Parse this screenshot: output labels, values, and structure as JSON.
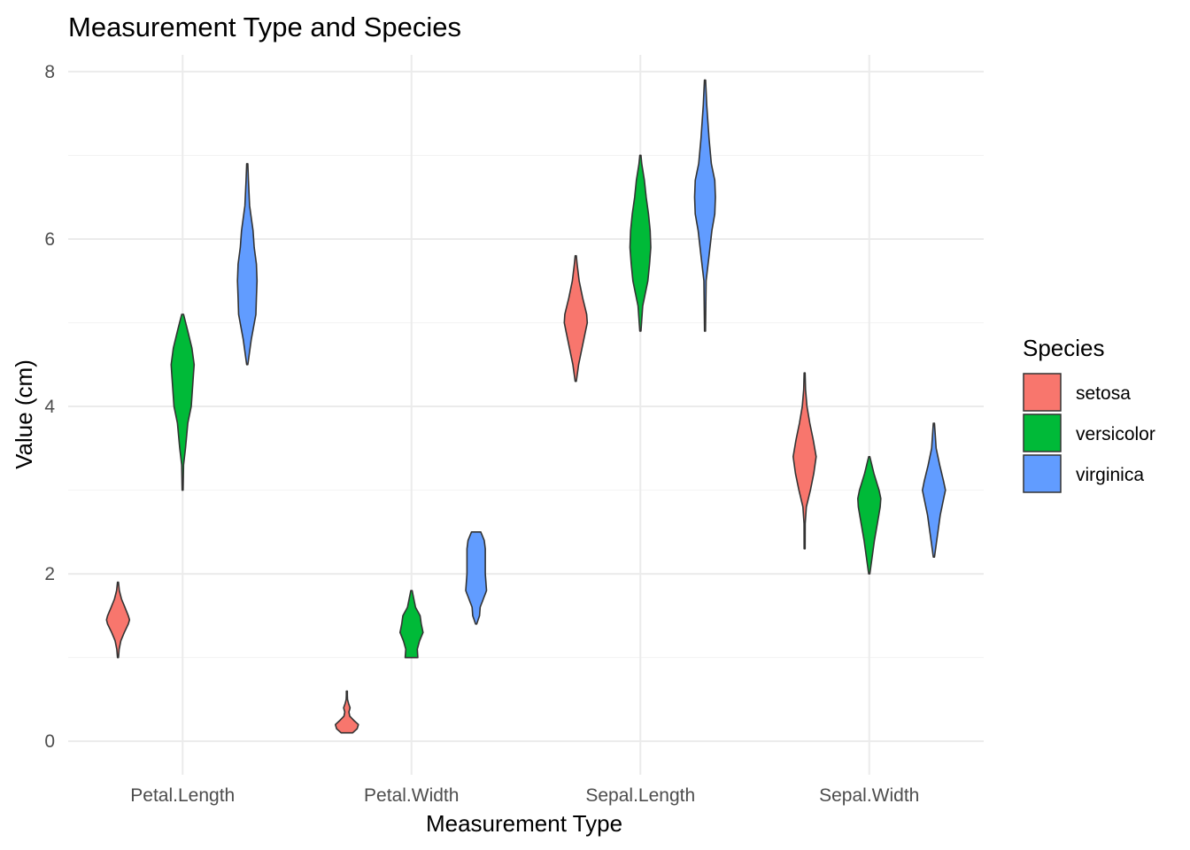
{
  "chart_data": {
    "type": "violin",
    "title": "Measurement Type and Species",
    "xlabel": "Measurement Type",
    "ylabel": "Value (cm)",
    "categories": [
      "Petal.Length",
      "Petal.Width",
      "Sepal.Length",
      "Sepal.Width"
    ],
    "ylim": [
      -0.4,
      8.2
    ],
    "yticks": [
      0,
      2,
      4,
      6,
      8
    ],
    "grid": true,
    "legend": {
      "title": "Species",
      "position": "right",
      "entries": [
        "setosa",
        "versicolor",
        "virginica"
      ]
    },
    "colors": {
      "setosa": "#F8766D",
      "versicolor": "#00BA38",
      "virginica": "#619CFF",
      "outline": "#333333"
    },
    "series": [
      {
        "name": "setosa",
        "violins": [
          {
            "category": "Petal.Length",
            "min": 1.0,
            "max": 1.9,
            "profile": [
              [
                1.0,
                0.02
              ],
              [
                1.1,
                0.1
              ],
              [
                1.2,
                0.25
              ],
              [
                1.3,
                0.55
              ],
              [
                1.4,
                0.9
              ],
              [
                1.45,
                1.0
              ],
              [
                1.5,
                0.9
              ],
              [
                1.6,
                0.6
              ],
              [
                1.7,
                0.3
              ],
              [
                1.8,
                0.12
              ],
              [
                1.9,
                0.04
              ]
            ]
          },
          {
            "category": "Petal.Width",
            "min": 0.1,
            "max": 0.6,
            "profile": [
              [
                0.1,
                0.5
              ],
              [
                0.15,
                0.9
              ],
              [
                0.2,
                1.0
              ],
              [
                0.25,
                0.6
              ],
              [
                0.3,
                0.25
              ],
              [
                0.35,
                0.18
              ],
              [
                0.4,
                0.28
              ],
              [
                0.45,
                0.15
              ],
              [
                0.5,
                0.06
              ],
              [
                0.55,
                0.04
              ],
              [
                0.6,
                0.03
              ]
            ]
          },
          {
            "category": "Sepal.Length",
            "min": 4.3,
            "max": 5.8,
            "profile": [
              [
                4.3,
                0.05
              ],
              [
                4.5,
                0.25
              ],
              [
                4.7,
                0.55
              ],
              [
                4.9,
                0.85
              ],
              [
                5.0,
                1.0
              ],
              [
                5.1,
                0.95
              ],
              [
                5.3,
                0.6
              ],
              [
                5.5,
                0.3
              ],
              [
                5.7,
                0.12
              ],
              [
                5.8,
                0.05
              ]
            ]
          },
          {
            "category": "Sepal.Width",
            "min": 2.3,
            "max": 4.4,
            "profile": [
              [
                2.3,
                0.02
              ],
              [
                2.6,
                0.05
              ],
              [
                2.8,
                0.15
              ],
              [
                3.0,
                0.5
              ],
              [
                3.2,
                0.8
              ],
              [
                3.4,
                1.0
              ],
              [
                3.6,
                0.75
              ],
              [
                3.8,
                0.45
              ],
              [
                4.0,
                0.2
              ],
              [
                4.2,
                0.08
              ],
              [
                4.4,
                0.03
              ]
            ]
          }
        ]
      },
      {
        "name": "versicolor",
        "violins": [
          {
            "category": "Petal.Length",
            "min": 3.0,
            "max": 5.1,
            "profile": [
              [
                3.0,
                0.02
              ],
              [
                3.3,
                0.08
              ],
              [
                3.5,
                0.25
              ],
              [
                3.8,
                0.45
              ],
              [
                4.0,
                0.75
              ],
              [
                4.2,
                0.85
              ],
              [
                4.4,
                0.95
              ],
              [
                4.5,
                1.0
              ],
              [
                4.7,
                0.8
              ],
              [
                4.9,
                0.45
              ],
              [
                5.1,
                0.08
              ]
            ]
          },
          {
            "category": "Petal.Width",
            "min": 1.0,
            "max": 1.8,
            "profile": [
              [
                1.0,
                0.55
              ],
              [
                1.1,
                0.5
              ],
              [
                1.2,
                0.7
              ],
              [
                1.3,
                1.0
              ],
              [
                1.4,
                0.85
              ],
              [
                1.5,
                0.75
              ],
              [
                1.6,
                0.35
              ],
              [
                1.7,
                0.2
              ],
              [
                1.8,
                0.06
              ]
            ]
          },
          {
            "category": "Sepal.Length",
            "min": 4.9,
            "max": 7.0,
            "profile": [
              [
                4.9,
                0.05
              ],
              [
                5.2,
                0.2
              ],
              [
                5.5,
                0.65
              ],
              [
                5.7,
                0.8
              ],
              [
                5.9,
                0.9
              ],
              [
                6.1,
                0.85
              ],
              [
                6.3,
                0.7
              ],
              [
                6.5,
                0.5
              ],
              [
                6.7,
                0.35
              ],
              [
                6.9,
                0.12
              ],
              [
                7.0,
                0.05
              ]
            ]
          },
          {
            "category": "Sepal.Width",
            "min": 2.0,
            "max": 3.4,
            "profile": [
              [
                2.0,
                0.05
              ],
              [
                2.2,
                0.25
              ],
              [
                2.4,
                0.45
              ],
              [
                2.6,
                0.7
              ],
              [
                2.8,
                0.95
              ],
              [
                2.9,
                1.0
              ],
              [
                3.0,
                0.85
              ],
              [
                3.2,
                0.4
              ],
              [
                3.4,
                0.05
              ]
            ]
          }
        ]
      },
      {
        "name": "virginica",
        "violins": [
          {
            "category": "Petal.Length",
            "min": 4.5,
            "max": 6.9,
            "profile": [
              [
                4.5,
                0.05
              ],
              [
                4.8,
                0.35
              ],
              [
                5.1,
                0.75
              ],
              [
                5.3,
                0.8
              ],
              [
                5.5,
                0.85
              ],
              [
                5.7,
                0.8
              ],
              [
                5.9,
                0.6
              ],
              [
                6.1,
                0.5
              ],
              [
                6.4,
                0.2
              ],
              [
                6.7,
                0.1
              ],
              [
                6.9,
                0.05
              ]
            ]
          },
          {
            "category": "Petal.Width",
            "min": 1.4,
            "max": 2.5,
            "profile": [
              [
                1.4,
                0.05
              ],
              [
                1.5,
                0.3
              ],
              [
                1.6,
                0.35
              ],
              [
                1.8,
                0.9
              ],
              [
                1.9,
                0.85
              ],
              [
                2.0,
                0.8
              ],
              [
                2.1,
                0.8
              ],
              [
                2.3,
                0.8
              ],
              [
                2.4,
                0.7
              ],
              [
                2.5,
                0.4
              ]
            ]
          },
          {
            "category": "Sepal.Length",
            "min": 4.9,
            "max": 7.9,
            "profile": [
              [
                4.9,
                0.03
              ],
              [
                5.5,
                0.1
              ],
              [
                5.8,
                0.35
              ],
              [
                6.1,
                0.6
              ],
              [
                6.3,
                0.85
              ],
              [
                6.5,
                0.9
              ],
              [
                6.7,
                0.85
              ],
              [
                6.9,
                0.55
              ],
              [
                7.2,
                0.35
              ],
              [
                7.6,
                0.15
              ],
              [
                7.9,
                0.05
              ]
            ]
          },
          {
            "category": "Sepal.Width",
            "min": 2.2,
            "max": 3.8,
            "profile": [
              [
                2.2,
                0.05
              ],
              [
                2.5,
                0.35
              ],
              [
                2.7,
                0.55
              ],
              [
                2.9,
                0.85
              ],
              [
                3.0,
                1.0
              ],
              [
                3.1,
                0.85
              ],
              [
                3.3,
                0.5
              ],
              [
                3.5,
                0.2
              ],
              [
                3.8,
                0.05
              ]
            ]
          }
        ]
      }
    ]
  }
}
